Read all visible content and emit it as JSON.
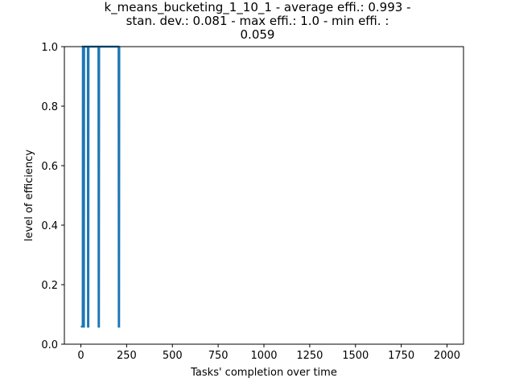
{
  "chart_data": {
    "type": "line",
    "title_lines": [
      "k_means_bucketing_1_10_1 - average effi.: 0.993 -",
      "stan. dev.: 0.081 - max effi.: 1.0 - min effi. :",
      "0.059"
    ],
    "xlabel": "Tasks' completion over time",
    "ylabel": "level of efficiency",
    "xlim": [
      -90,
      2090
    ],
    "ylim": [
      0.0,
      1.0
    ],
    "x_ticks": [
      0,
      250,
      500,
      750,
      1000,
      1250,
      1500,
      1750,
      2000
    ],
    "y_ticks": [
      0.0,
      0.2,
      0.4,
      0.6,
      0.8,
      1.0
    ],
    "x_tick_labels": [
      "0",
      "250",
      "500",
      "750",
      "1000",
      "1250",
      "1500",
      "1750",
      "2000"
    ],
    "y_tick_labels": [
      "0.0",
      "0.2",
      "0.4",
      "0.6",
      "0.8",
      "1.0"
    ],
    "grid": false,
    "series": [
      {
        "color": "#1f77b4",
        "x": [
          0,
          10,
          11,
          14,
          16,
          17,
          18,
          38,
          39,
          41,
          42,
          96,
          97,
          99,
          100,
          206,
          207,
          209,
          210
        ],
        "y": [
          0.059,
          0.059,
          1.0,
          1.0,
          0.059,
          0.059,
          1.0,
          1.0,
          0.059,
          0.059,
          1.0,
          1.0,
          0.059,
          0.059,
          1.0,
          1.0,
          0.059,
          0.059,
          1.0
        ]
      }
    ]
  }
}
